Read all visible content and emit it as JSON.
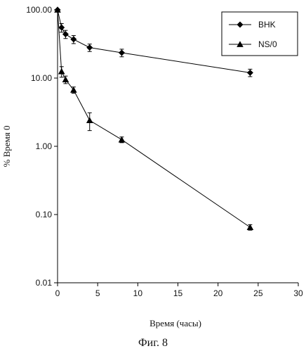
{
  "figure_caption": "Фиг. 8",
  "chart_data": {
    "type": "line",
    "xlabel": "Время (часы)",
    "ylabel": "% Время 0",
    "xlim": [
      0,
      30
    ],
    "ylim": [
      0.01,
      100
    ],
    "y_scale": "log",
    "x_ticks": [
      "0",
      "5",
      "10",
      "15",
      "20",
      "25",
      "30"
    ],
    "y_ticks": [
      "100.00",
      "10.00",
      "1.00",
      "0.10",
      "0.01"
    ],
    "grid": false,
    "legend_position": "top-right",
    "series": [
      {
        "name": "BHK",
        "marker": "diamond",
        "x": [
          0,
          0.5,
          1,
          2,
          4,
          8,
          24
        ],
        "y": [
          100,
          55,
          44,
          37,
          28,
          23.5,
          12
        ],
        "err": [
          0,
          8,
          6,
          5,
          3.5,
          3,
          1.5
        ]
      },
      {
        "name": "NS/0",
        "marker": "triangle",
        "x": [
          0,
          0.5,
          1,
          2,
          4,
          8,
          24
        ],
        "y": [
          100,
          12.5,
          9.5,
          6.7,
          2.4,
          1.25,
          0.065
        ],
        "err": [
          0,
          2.2,
          1.2,
          0.7,
          0.7,
          0.12,
          0.006
        ]
      }
    ]
  }
}
